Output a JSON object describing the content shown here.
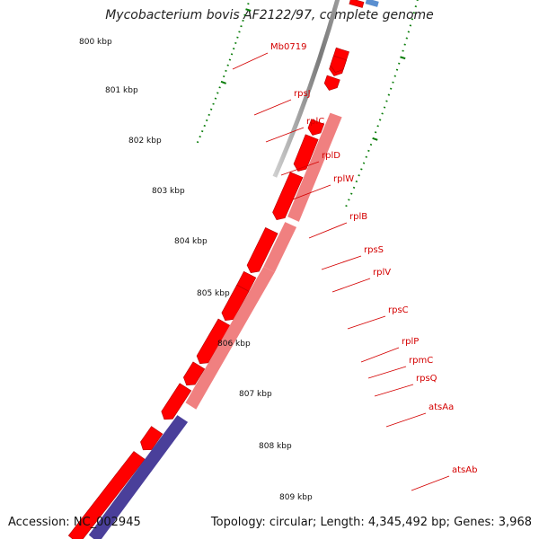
{
  "map_title": "Mycobacterium bovis AF2122/97, complete genome",
  "footer": {
    "accession": "Accession: NC_002945",
    "topology": "Topology: circular; Length: 4,345,492 bp; Genes: 3,968"
  },
  "colors": {
    "cds_forward": "#ff0000",
    "rna_highlight": "#f08080",
    "operon_blue": "#4a3f9a",
    "backbone": "#8a8a8a",
    "tick_green": "#0a7d0a",
    "label_red": "#d40000"
  },
  "kbp_labels": [
    "800 kbp",
    "801 kbp",
    "802 kbp",
    "803 kbp",
    "804 kbp",
    "805 kbp",
    "806 kbp",
    "807 kbp",
    "808 kbp",
    "809 kbp"
  ],
  "genes": [
    {
      "name": "Mb0719"
    },
    {
      "name": "rpsJ"
    },
    {
      "name": "rplC"
    },
    {
      "name": "rplD"
    },
    {
      "name": "rplW"
    },
    {
      "name": "rplB"
    },
    {
      "name": "rpsS"
    },
    {
      "name": "rplV"
    },
    {
      "name": "rpsC"
    },
    {
      "name": "rplP"
    },
    {
      "name": "rpmC"
    },
    {
      "name": "rpsQ"
    },
    {
      "name": "atsAa"
    },
    {
      "name": "atsAb"
    }
  ]
}
